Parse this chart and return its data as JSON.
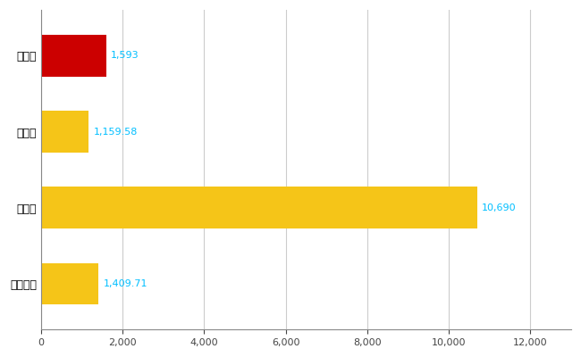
{
  "categories": [
    "全国平均",
    "県最大",
    "県平均",
    "日向市"
  ],
  "values": [
    1409.71,
    10690,
    1159.58,
    1593
  ],
  "bar_colors": [
    "#F5C518",
    "#F5C518",
    "#F5C518",
    "#CC0000"
  ],
  "value_labels": [
    "1,409.71",
    "10,690",
    "1,159.58",
    "1,593"
  ],
  "xlim": [
    0,
    13000
  ],
  "xticks": [
    0,
    2000,
    4000,
    6000,
    8000,
    10000,
    12000
  ],
  "grid_color": "#cccccc",
  "label_color": "#00BFFF",
  "bar_height": 0.55,
  "figsize": [
    6.5,
    4.0
  ],
  "dpi": 100
}
